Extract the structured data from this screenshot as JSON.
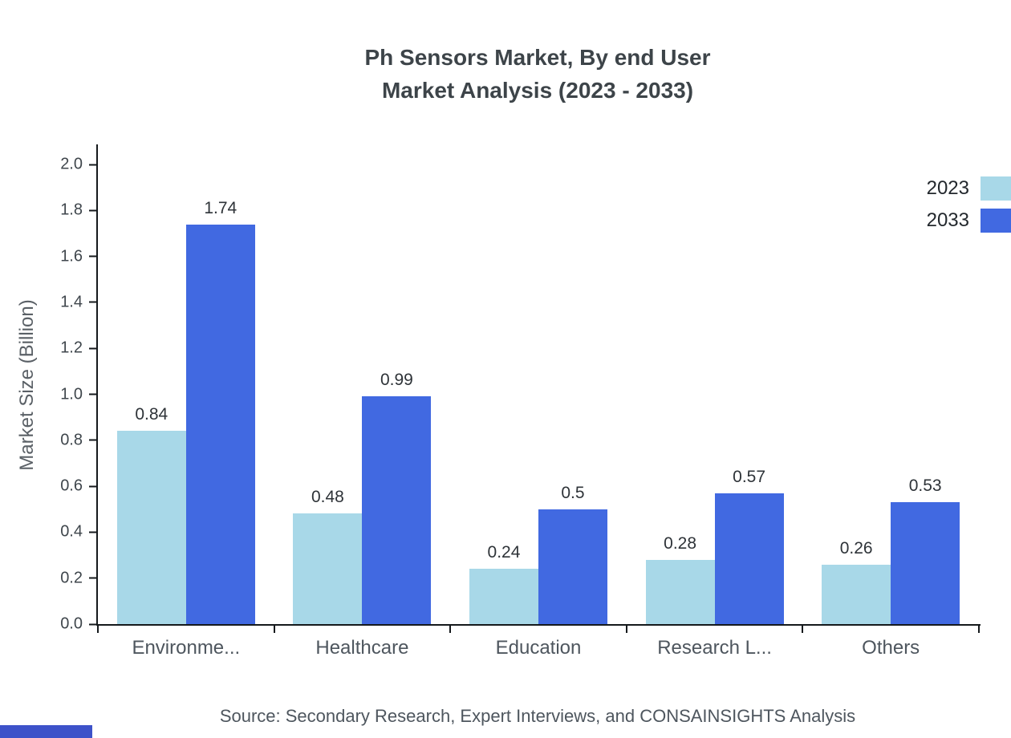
{
  "title": {
    "line1": "Ph Sensors Market, By end User",
    "line2": "Market Analysis (2023 - 2033)"
  },
  "footer": {
    "source": "Source: Secondary Research, Expert Interviews, and CONSAINSIGHTS Analysis"
  },
  "colors": {
    "series_2023": "#A8D8E8",
    "series_2033": "#4169E1",
    "footer_bar": "#3D52C9",
    "axis_line": "#15191c"
  },
  "chart_data": {
    "type": "bar",
    "title": "Ph Sensors Market, By end User Market Analysis (2023 - 2033)",
    "categories": [
      "Environme...",
      "Healthcare",
      "Education",
      "Research L...",
      "Others"
    ],
    "series": [
      {
        "name": "2023",
        "color": "#A8D8E8",
        "values": [
          0.84,
          0.48,
          0.24,
          0.28,
          0.26
        ]
      },
      {
        "name": "2033",
        "color": "#4169E1",
        "values": [
          1.74,
          0.99,
          0.5,
          0.57,
          0.53
        ]
      }
    ],
    "xlabel": "",
    "ylabel": "Market Size (Billion)",
    "ylim": [
      0,
      2.0
    ],
    "ytick_step": 0.2,
    "grid": false,
    "legend_position": "top-right"
  }
}
